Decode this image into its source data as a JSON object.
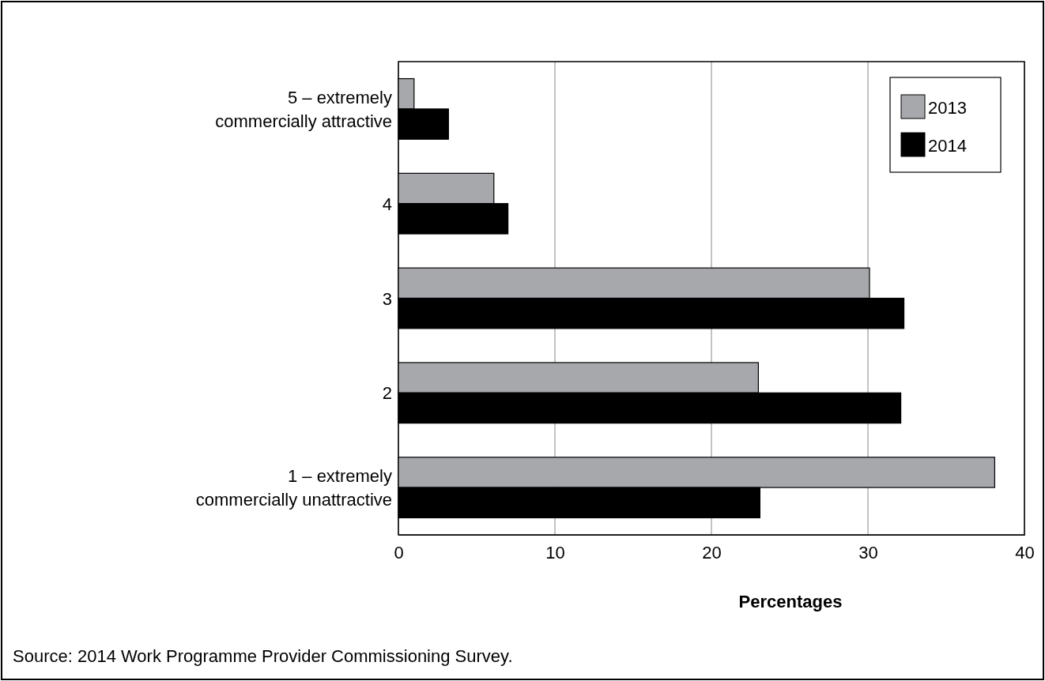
{
  "chart_data": {
    "type": "bar",
    "orientation": "horizontal",
    "xlabel": "Percentages",
    "categories": [
      "5 – extremely commercially attractive",
      "4",
      "3",
      "2",
      "1 – extremely commercially unattractive"
    ],
    "series": [
      {
        "name": "2013",
        "color": "#a7a8ac",
        "values": [
          1.0,
          6.1,
          30.1,
          23.0,
          38.1
        ]
      },
      {
        "name": "2014",
        "color": "#000000",
        "values": [
          3.2,
          7.0,
          32.3,
          32.1,
          23.1
        ]
      }
    ],
    "xlim": [
      0,
      40
    ],
    "xticks": [
      0,
      10,
      20,
      30,
      40
    ],
    "grid": "x",
    "legend": "top right",
    "annotations": [
      "Source: 2014 Work Programme Provider Commissioning Survey."
    ]
  }
}
